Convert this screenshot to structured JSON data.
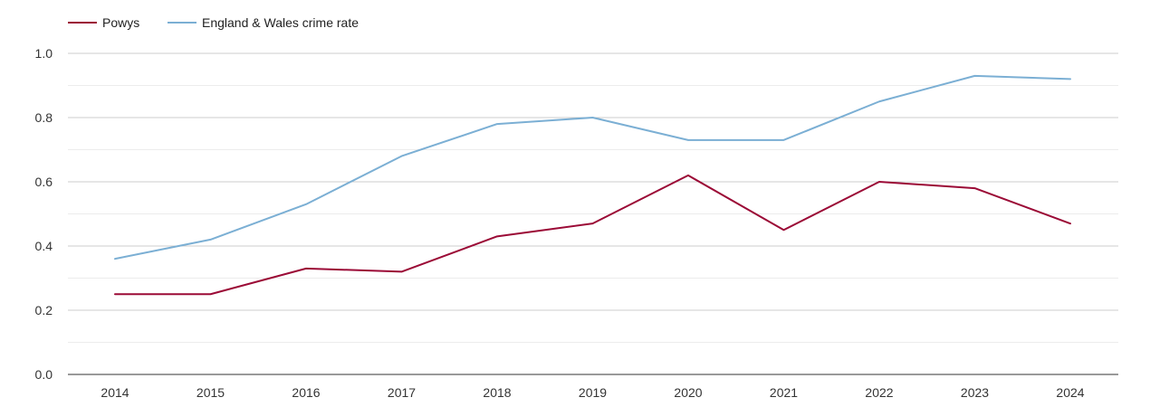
{
  "chart_data": {
    "type": "line",
    "categories": [
      "2014",
      "2015",
      "2016",
      "2017",
      "2018",
      "2019",
      "2020",
      "2021",
      "2022",
      "2023",
      "2024"
    ],
    "series": [
      {
        "name": "Powys",
        "color": "#9b0a36",
        "values": [
          0.25,
          0.25,
          0.33,
          0.32,
          0.43,
          0.47,
          0.62,
          0.45,
          0.6,
          0.58,
          0.47
        ]
      },
      {
        "name": "England & Wales crime rate",
        "color": "#7bafd4",
        "values": [
          0.36,
          0.42,
          0.53,
          0.68,
          0.78,
          0.8,
          0.73,
          0.73,
          0.85,
          0.93,
          0.92
        ]
      }
    ],
    "ylim": [
      0,
      1.0
    ],
    "yticks": [
      "0.0",
      "0.2",
      "0.4",
      "0.6",
      "0.8",
      "1.0"
    ],
    "grid": true,
    "legend_position": "top-left"
  }
}
